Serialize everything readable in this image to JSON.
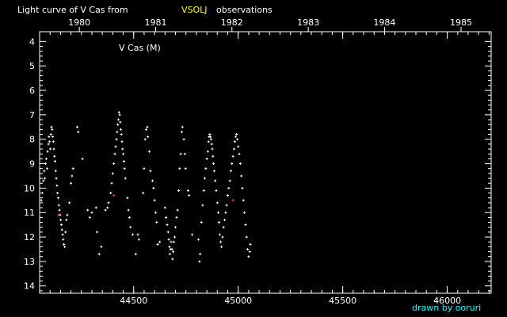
{
  "header": {
    "title_prefix": "Light curve of V Cas from",
    "title_source": "VSOLJ",
    "title_suffix": "observations"
  },
  "footer": {
    "credit": "drawn by ooruri"
  },
  "colors": {
    "background": "#000000",
    "axis": "#ffffff",
    "points": "#ffffff",
    "highlight_points": "#ff4040",
    "source_label": "#ffff00",
    "credit": "#00ffff"
  },
  "chart_data": {
    "type": "scatter",
    "title": "Light curve of V Cas from VSOLJ observations",
    "inset_label": "V Cas (M)",
    "xlabel": "",
    "ylabel": "",
    "xlim": [
      44050,
      46210
    ],
    "ylim": [
      14.3,
      3.6
    ],
    "y_inverted": true,
    "grid": false,
    "x_ticks": [
      44500,
      45000,
      45500,
      46000
    ],
    "x_tick_labels": [
      "44500",
      "45000",
      "45500",
      "46000"
    ],
    "top_axis_years": [
      {
        "label": "1980",
        "x": 44240
      },
      {
        "label": "1981",
        "x": 44605
      },
      {
        "label": "1982",
        "x": 44970
      },
      {
        "label": "1983",
        "x": 45335
      },
      {
        "label": "1984",
        "x": 45700
      },
      {
        "label": "1985",
        "x": 46066
      }
    ],
    "y_ticks": [
      4,
      5,
      6,
      7,
      8,
      9,
      10,
      11,
      12,
      13,
      14
    ],
    "y_tick_labels": [
      "4",
      "5",
      "6",
      "7",
      "8",
      "9",
      "10",
      "11",
      "12",
      "13",
      "14"
    ],
    "series": [
      {
        "points": [
          [
            44058,
            10.5
          ],
          [
            44063,
            10.2
          ],
          [
            44068,
            9.7
          ],
          [
            44072,
            9.3
          ],
          [
            44075,
            9.6
          ],
          [
            44078,
            9.0
          ],
          [
            44082,
            8.8
          ],
          [
            44086,
            9.2
          ],
          [
            44088,
            8.5
          ],
          [
            44092,
            8.2
          ],
          [
            44095,
            7.9
          ],
          [
            44098,
            8.1
          ],
          [
            44101,
            8.4
          ],
          [
            44104,
            7.8
          ],
          [
            44107,
            7.5
          ],
          [
            44110,
            7.6
          ],
          [
            44113,
            7.9
          ],
          [
            44116,
            8.1
          ],
          [
            44118,
            8.4
          ],
          [
            44121,
            8.7
          ],
          [
            44124,
            8.9
          ],
          [
            44127,
            9.3
          ],
          [
            44130,
            9.6
          ],
          [
            44133,
            9.9
          ],
          [
            44136,
            10.2
          ],
          [
            44139,
            10.4
          ],
          [
            44142,
            10.7
          ],
          [
            44145,
            10.9
          ],
          [
            44148,
            11.1
          ],
          [
            44151,
            11.3
          ],
          [
            44154,
            11.5
          ],
          [
            44157,
            11.7
          ],
          [
            44160,
            11.9
          ],
          [
            44163,
            12.1
          ],
          [
            44166,
            12.3
          ],
          [
            44170,
            12.4
          ],
          [
            44174,
            11.8
          ],
          [
            44178,
            11.3
          ],
          [
            44182,
            11.1
          ],
          [
            44192,
            10.6
          ],
          [
            44200,
            9.8
          ],
          [
            44205,
            9.5
          ],
          [
            44210,
            9.2
          ],
          [
            44230,
            7.5
          ],
          [
            44235,
            7.7
          ],
          [
            44255,
            8.8
          ],
          [
            44280,
            10.9
          ],
          [
            44290,
            11.2
          ],
          [
            44300,
            11.0
          ],
          [
            44320,
            10.8
          ],
          [
            44325,
            11.8
          ],
          [
            44335,
            12.7
          ],
          [
            44345,
            12.4
          ],
          [
            44365,
            10.9
          ],
          [
            44375,
            10.8
          ],
          [
            44380,
            10.6
          ],
          [
            44390,
            10.2
          ],
          [
            44395,
            9.8
          ],
          [
            44400,
            9.4
          ],
          [
            44405,
            9.0
          ],
          [
            44410,
            8.6
          ],
          [
            44414,
            8.3
          ],
          [
            44418,
            8.0
          ],
          [
            44421,
            7.7
          ],
          [
            44424,
            7.4
          ],
          [
            44427,
            7.2
          ],
          [
            44430,
            6.9
          ],
          [
            44433,
            7.0
          ],
          [
            44436,
            7.3
          ],
          [
            44438,
            7.6
          ],
          [
            44441,
            7.8
          ],
          [
            44444,
            8.1
          ],
          [
            44447,
            8.4
          ],
          [
            44450,
            8.6
          ],
          [
            44453,
            8.9
          ],
          [
            44456,
            9.2
          ],
          [
            44460,
            9.6
          ],
          [
            44470,
            10.4
          ],
          [
            44475,
            10.9
          ],
          [
            44480,
            11.2
          ],
          [
            44485,
            11.6
          ],
          [
            44495,
            11.9
          ],
          [
            44510,
            12.7
          ],
          [
            44520,
            11.9
          ],
          [
            44525,
            12.1
          ],
          [
            44545,
            10.2
          ],
          [
            44550,
            9.2
          ],
          [
            44555,
            8.0
          ],
          [
            44560,
            7.6
          ],
          [
            44565,
            7.5
          ],
          [
            44568,
            7.9
          ],
          [
            44575,
            8.5
          ],
          [
            44580,
            9.3
          ],
          [
            44590,
            9.7
          ],
          [
            44595,
            10.0
          ],
          [
            44600,
            10.5
          ],
          [
            44605,
            11.0
          ],
          [
            44610,
            11.4
          ],
          [
            44615,
            12.3
          ],
          [
            44625,
            12.2
          ],
          [
            44650,
            10.8
          ],
          [
            44655,
            11.2
          ],
          [
            44660,
            11.5
          ],
          [
            44665,
            11.8
          ],
          [
            44668,
            12.1
          ],
          [
            44671,
            12.4
          ],
          [
            44673,
            12.7
          ],
          [
            44676,
            12.5
          ],
          [
            44679,
            12.2
          ],
          [
            44683,
            12.5
          ],
          [
            44686,
            12.9
          ],
          [
            44689,
            12.6
          ],
          [
            44692,
            12.2
          ],
          [
            44696,
            12.0
          ],
          [
            44700,
            11.6
          ],
          [
            44705,
            11.2
          ],
          [
            44710,
            10.9
          ],
          [
            44715,
            10.1
          ],
          [
            44720,
            9.2
          ],
          [
            44725,
            8.6
          ],
          [
            44730,
            7.7
          ],
          [
            44733,
            7.5
          ],
          [
            44740,
            8.0
          ],
          [
            44745,
            8.6
          ],
          [
            44748,
            9.2
          ],
          [
            44760,
            10.1
          ],
          [
            44765,
            10.3
          ],
          [
            44780,
            11.9
          ],
          [
            44810,
            12.1
          ],
          [
            44815,
            13.0
          ],
          [
            44818,
            12.7
          ],
          [
            44824,
            11.4
          ],
          [
            44830,
            10.7
          ],
          [
            44835,
            10.1
          ],
          [
            44840,
            9.6
          ],
          [
            44845,
            9.2
          ],
          [
            44850,
            8.8
          ],
          [
            44855,
            8.5
          ],
          [
            44858,
            8.1
          ],
          [
            44861,
            7.9
          ],
          [
            44864,
            7.8
          ],
          [
            44867,
            7.9
          ],
          [
            44870,
            8.0
          ],
          [
            44873,
            8.2
          ],
          [
            44876,
            8.4
          ],
          [
            44879,
            8.7
          ],
          [
            44882,
            9.0
          ],
          [
            44885,
            9.3
          ],
          [
            44890,
            9.7
          ],
          [
            44895,
            10.1
          ],
          [
            44900,
            10.6
          ],
          [
            44905,
            11.0
          ],
          [
            44908,
            11.4
          ],
          [
            44912,
            11.9
          ],
          [
            44916,
            12.2
          ],
          [
            44920,
            12.4
          ],
          [
            44925,
            12.0
          ],
          [
            44930,
            11.6
          ],
          [
            44935,
            11.3
          ],
          [
            44940,
            11.0
          ],
          [
            44945,
            10.7
          ],
          [
            44950,
            10.3
          ],
          [
            44955,
            10.0
          ],
          [
            44960,
            9.7
          ],
          [
            44965,
            9.3
          ],
          [
            44970,
            9.0
          ],
          [
            44975,
            8.7
          ],
          [
            44980,
            8.4
          ],
          [
            44984,
            8.1
          ],
          [
            44988,
            7.9
          ],
          [
            44992,
            7.8
          ],
          [
            44996,
            8.0
          ],
          [
            45000,
            8.3
          ],
          [
            45005,
            8.6
          ],
          [
            45010,
            9.0
          ],
          [
            45015,
            9.5
          ],
          [
            45020,
            10.0
          ],
          [
            45025,
            10.5
          ],
          [
            45030,
            11.0
          ],
          [
            45035,
            11.5
          ],
          [
            45040,
            12.0
          ],
          [
            45045,
            12.5
          ],
          [
            45050,
            12.8
          ],
          [
            45055,
            12.6
          ],
          [
            45058,
            12.3
          ]
        ]
      },
      {
        "points": [
          [
            44140,
            11.1
          ],
          [
            44405,
            10.3
          ],
          [
            44975,
            10.5
          ]
        ]
      }
    ]
  }
}
